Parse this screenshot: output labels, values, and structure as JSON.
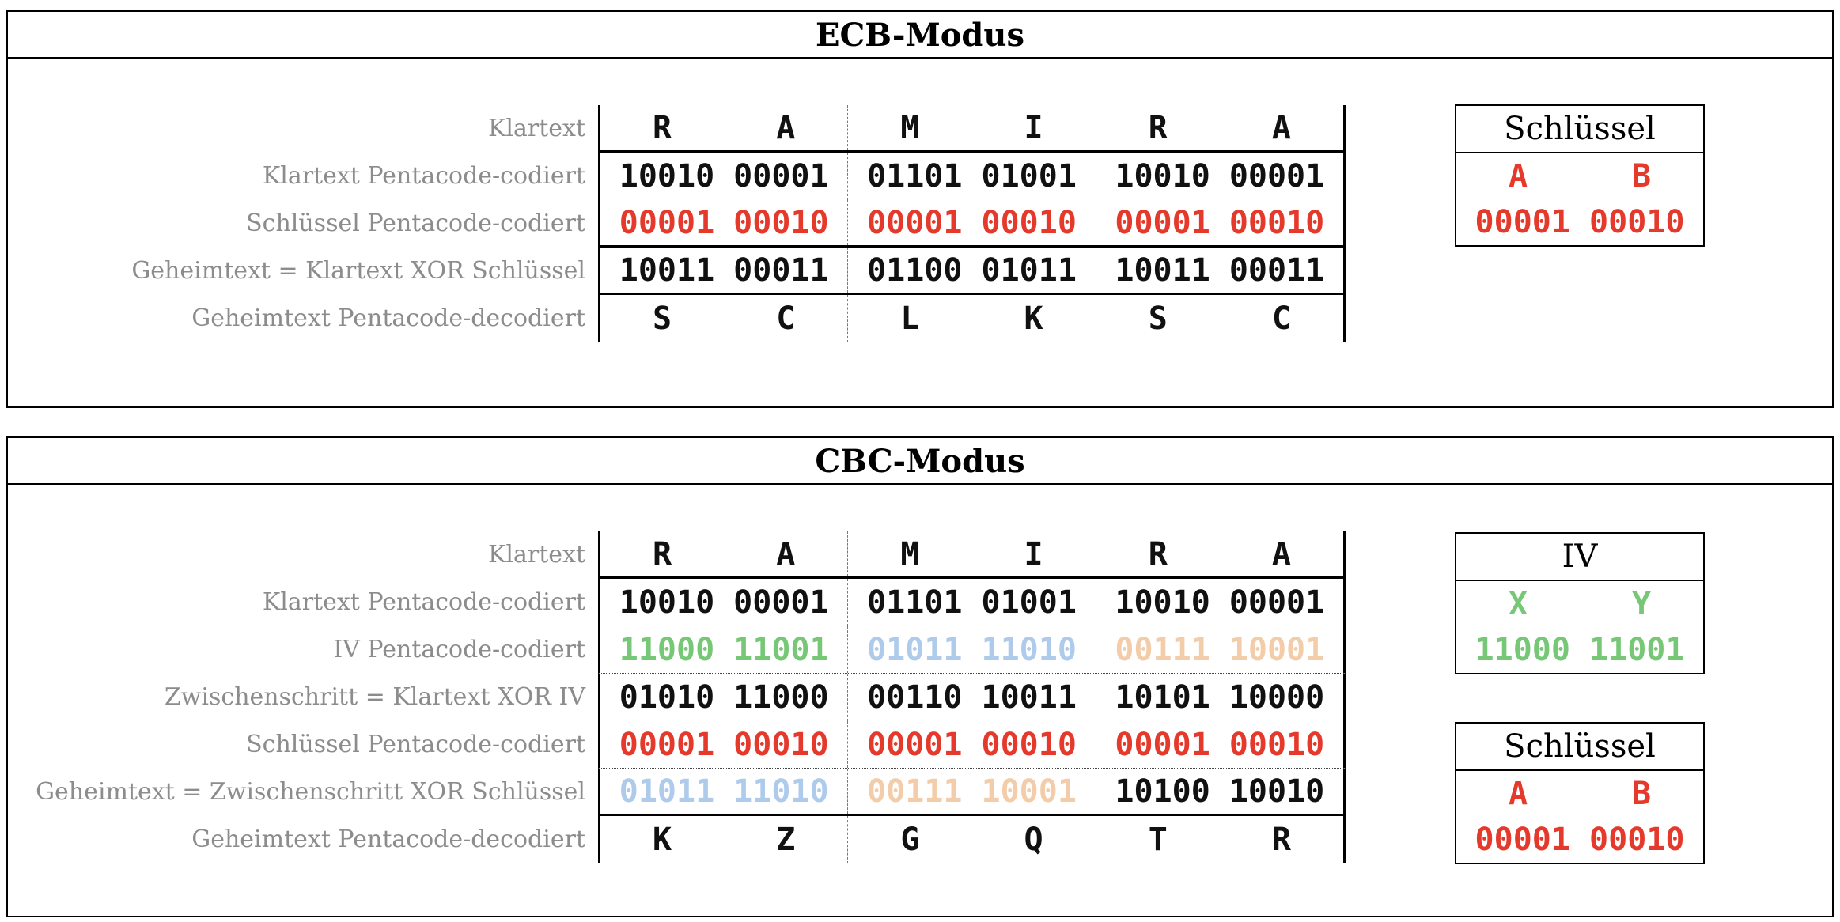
{
  "colors": {
    "black": "#111111",
    "red": "#e5392b",
    "green": "#76c876",
    "blue": "#aecbec",
    "tan": "#f3cda9",
    "label_gray": "#8c8c8c",
    "line_black": "#000000"
  },
  "panels": [
    {
      "title": "ECB-Modus",
      "rows": [
        {
          "label": "Klartext",
          "type": "letters",
          "sep": "solid",
          "cells": [
            "R",
            "A",
            "M",
            "I",
            "R",
            "A"
          ],
          "cell_colors": [
            "black",
            "black",
            "black",
            "black",
            "black",
            "black"
          ]
        },
        {
          "label": "Klartext Pentacode-codiert",
          "type": "bits",
          "sep": "none",
          "cells": [
            "10010",
            "00001",
            "01101",
            "01001",
            "10010",
            "00001"
          ],
          "cell_colors": [
            "black",
            "black",
            "black",
            "black",
            "black",
            "black"
          ]
        },
        {
          "label": "Schlüssel Pentacode-codiert",
          "type": "bits",
          "sep": "solid",
          "cells": [
            "00001",
            "00010",
            "00001",
            "00010",
            "00001",
            "00010"
          ],
          "cell_colors": [
            "red",
            "red",
            "red",
            "red",
            "red",
            "red"
          ]
        },
        {
          "label": "Geheimtext = Klartext XOR Schlüssel",
          "type": "bits",
          "sep": "solid",
          "cells": [
            "10011",
            "00011",
            "01100",
            "01011",
            "10011",
            "00011"
          ],
          "cell_colors": [
            "black",
            "black",
            "black",
            "black",
            "black",
            "black"
          ]
        },
        {
          "label": "Geheimtext Pentacode-decodiert",
          "type": "letters",
          "sep": "none",
          "cells": [
            "S",
            "C",
            "L",
            "K",
            "S",
            "C"
          ],
          "cell_colors": [
            "black",
            "black",
            "black",
            "black",
            "black",
            "black"
          ]
        }
      ],
      "side_boxes": [
        {
          "title": "Schlüssel",
          "letters": [
            "A",
            "B"
          ],
          "bits": [
            "00001",
            "00010"
          ],
          "color": "red"
        }
      ]
    },
    {
      "title": "CBC-Modus",
      "rows": [
        {
          "label": "Klartext",
          "type": "letters",
          "sep": "solid",
          "cells": [
            "R",
            "A",
            "M",
            "I",
            "R",
            "A"
          ],
          "cell_colors": [
            "black",
            "black",
            "black",
            "black",
            "black",
            "black"
          ]
        },
        {
          "label": "Klartext Pentacode-codiert",
          "type": "bits",
          "sep": "none",
          "cells": [
            "10010",
            "00001",
            "01101",
            "01001",
            "10010",
            "00001"
          ],
          "cell_colors": [
            "black",
            "black",
            "black",
            "black",
            "black",
            "black"
          ]
        },
        {
          "label": "IV Pentacode-codiert",
          "type": "bits",
          "sep": "dotted",
          "cells": [
            "11000",
            "11001",
            "01011",
            "11010",
            "00111",
            "10001"
          ],
          "cell_colors": [
            "green",
            "green",
            "blue",
            "blue",
            "tan",
            "tan"
          ]
        },
        {
          "label": "Zwischenschritt = Klartext XOR IV",
          "type": "bits",
          "sep": "none",
          "cells": [
            "01010",
            "11000",
            "00110",
            "10011",
            "10101",
            "10000"
          ],
          "cell_colors": [
            "black",
            "black",
            "black",
            "black",
            "black",
            "black"
          ]
        },
        {
          "label": "Schlüssel Pentacode-codiert",
          "type": "bits",
          "sep": "dotted",
          "cells": [
            "00001",
            "00010",
            "00001",
            "00010",
            "00001",
            "00010"
          ],
          "cell_colors": [
            "red",
            "red",
            "red",
            "red",
            "red",
            "red"
          ]
        },
        {
          "label": "Geheimtext = Zwischenschritt XOR Schlüssel",
          "type": "bits",
          "sep": "solid",
          "cells": [
            "01011",
            "11010",
            "00111",
            "10001",
            "10100",
            "10010"
          ],
          "cell_colors": [
            "blue",
            "blue",
            "tan",
            "tan",
            "black",
            "black"
          ]
        },
        {
          "label": "Geheimtext Pentacode-decodiert",
          "type": "letters",
          "sep": "none",
          "cells": [
            "K",
            "Z",
            "G",
            "Q",
            "T",
            "R"
          ],
          "cell_colors": [
            "black",
            "black",
            "black",
            "black",
            "black",
            "black"
          ]
        }
      ],
      "side_boxes": [
        {
          "title": "IV",
          "letters": [
            "X",
            "Y"
          ],
          "bits": [
            "11000",
            "11001"
          ],
          "color": "green"
        },
        {
          "title": "Schlüssel",
          "letters": [
            "A",
            "B"
          ],
          "bits": [
            "00001",
            "00010"
          ],
          "color": "red"
        }
      ]
    }
  ]
}
